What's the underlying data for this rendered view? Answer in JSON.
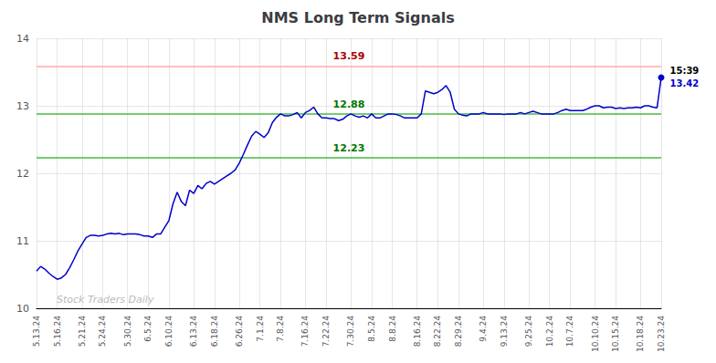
{
  "chart_data": {
    "type": "line",
    "title": "NMS Long Term Signals",
    "categories": [
      "5.13.24",
      null,
      null,
      null,
      null,
      "5.16.24",
      null,
      null,
      null,
      null,
      null,
      "5.21.24",
      null,
      null,
      null,
      null,
      "5.24.24",
      null,
      null,
      null,
      null,
      null,
      "5.30.24",
      null,
      null,
      null,
      null,
      "6.5.24",
      null,
      null,
      null,
      null,
      "6.10.24",
      null,
      null,
      null,
      null,
      null,
      "6.13.24",
      null,
      null,
      null,
      null,
      "6.18.24",
      null,
      null,
      null,
      null,
      null,
      "6.26.24",
      null,
      null,
      null,
      null,
      "7.1.24",
      null,
      null,
      null,
      null,
      "7.8.24",
      null,
      null,
      null,
      null,
      null,
      "7.16.24",
      null,
      null,
      null,
      null,
      "7.22.24",
      null,
      null,
      null,
      null,
      null,
      "7.30.24",
      null,
      null,
      null,
      null,
      "8.5.24",
      null,
      null,
      null,
      null,
      "8.8.24",
      null,
      null,
      null,
      null,
      null,
      "8.16.24",
      null,
      null,
      null,
      null,
      "8.22.24",
      null,
      null,
      null,
      null,
      "8.29.24",
      null,
      null,
      null,
      null,
      null,
      "9.4.24",
      null,
      null,
      null,
      null,
      "9.13.24",
      null,
      null,
      null,
      null,
      null,
      "9.25.24",
      null,
      null,
      null,
      null,
      "10.2.24",
      null,
      null,
      null,
      null,
      "10.7.24",
      null,
      null,
      null,
      null,
      null,
      "10.10.24",
      null,
      null,
      null,
      null,
      "10.15.24",
      null,
      null,
      null,
      null,
      null,
      "10.18.24",
      null,
      null,
      null,
      null,
      "10.23.24"
    ],
    "values": [
      10.55,
      10.62,
      10.58,
      10.52,
      10.47,
      10.43,
      10.45,
      10.5,
      10.6,
      10.72,
      10.85,
      10.95,
      11.05,
      11.08,
      11.08,
      11.07,
      11.08,
      11.1,
      11.11,
      11.1,
      11.11,
      11.09,
      11.1,
      11.1,
      11.1,
      11.09,
      11.07,
      11.07,
      11.05,
      11.1,
      11.1,
      11.2,
      11.3,
      11.55,
      11.72,
      11.58,
      11.52,
      11.75,
      11.7,
      11.82,
      11.77,
      11.85,
      11.88,
      11.84,
      11.88,
      11.92,
      11.96,
      12.0,
      12.05,
      12.15,
      12.28,
      12.42,
      12.55,
      12.62,
      12.58,
      12.53,
      12.6,
      12.75,
      12.83,
      12.88,
      12.85,
      12.85,
      12.87,
      12.9,
      12.82,
      12.9,
      12.93,
      12.98,
      12.88,
      12.82,
      12.82,
      12.81,
      12.81,
      12.78,
      12.8,
      12.85,
      12.88,
      12.85,
      12.83,
      12.85,
      12.82,
      12.88,
      12.82,
      12.82,
      12.85,
      12.88,
      12.88,
      12.87,
      12.85,
      12.82,
      12.82,
      12.82,
      12.82,
      12.88,
      13.22,
      13.2,
      13.18,
      13.2,
      13.24,
      13.3,
      13.2,
      12.95,
      12.88,
      12.86,
      12.85,
      12.88,
      12.88,
      12.88,
      12.9,
      12.88,
      12.88,
      12.88,
      12.88,
      12.87,
      12.88,
      12.88,
      12.88,
      12.9,
      12.88,
      12.9,
      12.92,
      12.9,
      12.88,
      12.88,
      12.88,
      12.88,
      12.9,
      12.93,
      12.95,
      12.93,
      12.93,
      12.93,
      12.93,
      12.95,
      12.98,
      13.0,
      13.0,
      12.97,
      12.98,
      12.98,
      12.96,
      12.97,
      12.96,
      12.97,
      12.97,
      12.98,
      12.97,
      13.0,
      13.0,
      12.98,
      12.97,
      13.42
    ],
    "color": "#0000cc",
    "ylim": [
      10,
      14
    ],
    "yticks": [
      10,
      11,
      12,
      13,
      14
    ],
    "grid": true,
    "hlines": [
      {
        "value": 13.59,
        "color": "#ffaaaa",
        "label_color": "#aa0000"
      },
      {
        "value": 12.88,
        "color": "#44bb44",
        "label_color": "#007700"
      },
      {
        "value": 12.23,
        "color": "#44bb44",
        "label_color": "#007700"
      }
    ],
    "annotations": [
      {
        "text": "15:39",
        "color": "#000000"
      },
      {
        "text": "13.42",
        "color": "#0000cc"
      },
      {
        "text": "Stock Traders Daily",
        "color": "#bbbbbb"
      }
    ]
  }
}
